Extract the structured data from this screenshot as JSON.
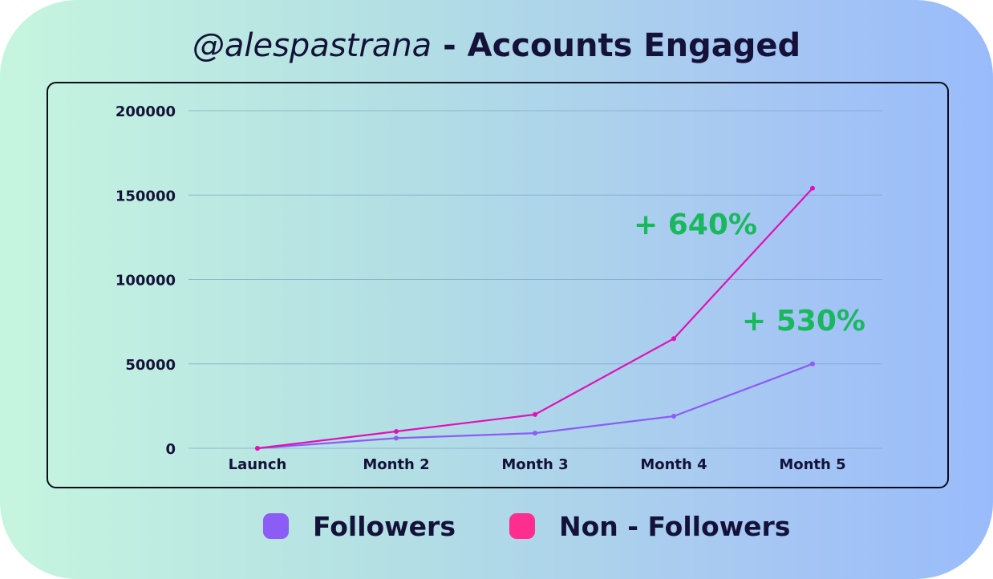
{
  "title": {
    "handle": "@alespastrana",
    "rest": " - Accounts Engaged"
  },
  "colors": {
    "followers": "#8b5cf6",
    "non_followers": "#e011b8",
    "legend_non_followers": "#ff2d8e",
    "annotation": "#1ab85e",
    "grid": "#7fa1c2",
    "text": "#15123a"
  },
  "chart_data": {
    "type": "line",
    "title": "@alespastrana - Accounts Engaged",
    "xlabel": "",
    "ylabel": "",
    "categories": [
      "Launch",
      "Month 2",
      "Month 3",
      "Month 4",
      "Month 5"
    ],
    "ylim": [
      0,
      200000
    ],
    "yticks": [
      "0",
      "50000",
      "100000",
      "150000",
      "200000"
    ],
    "grid": true,
    "series": [
      {
        "name": "Followers",
        "values": [
          0,
          6000,
          9000,
          19000,
          50000
        ]
      },
      {
        "name": "Non - Followers",
        "values": [
          0,
          10000,
          20000,
          65000,
          154000
        ]
      }
    ],
    "annotations": [
      {
        "text": "+ 640%",
        "series": "Non - Followers"
      },
      {
        "text": "+ 530%",
        "series": "Followers"
      }
    ],
    "legend": {
      "placement": "bottom",
      "items": [
        "Followers",
        "Non - Followers"
      ]
    }
  }
}
